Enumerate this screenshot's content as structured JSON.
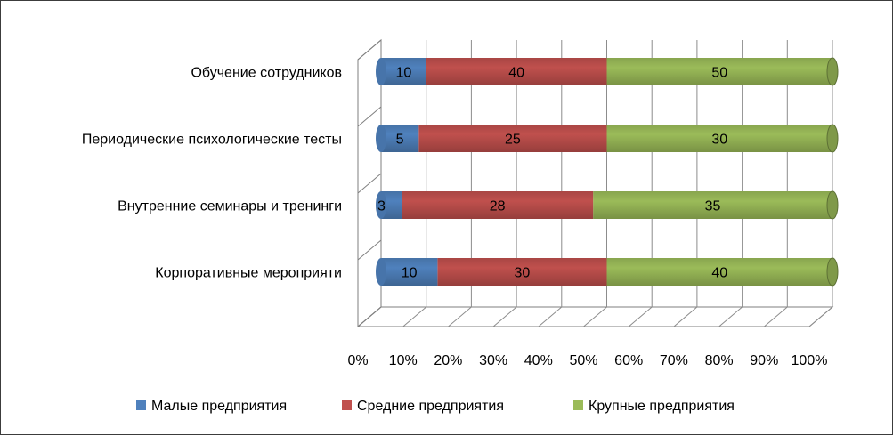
{
  "chart_data": {
    "type": "bar",
    "orientation": "horizontal",
    "stacked": "percent",
    "categories": [
      "Обучение сотрудников",
      "Периодические психологические тесты",
      "Внутренние семинары и тренинги",
      "Корпоративные мероприяти"
    ],
    "series": [
      {
        "name": "Малые предприятия",
        "color": "#4f81bd",
        "values": [
          10,
          5,
          3,
          10
        ]
      },
      {
        "name": "Средние предприятия",
        "color": "#c0504d",
        "values": [
          40,
          25,
          28,
          30
        ]
      },
      {
        "name": "Крупные предприятия",
        "color": "#9bbb59",
        "values": [
          50,
          30,
          35,
          40
        ]
      }
    ],
    "x_ticks": [
      "0%",
      "10%",
      "20%",
      "30%",
      "40%",
      "50%",
      "60%",
      "70%",
      "80%",
      "90%",
      "100%"
    ],
    "xlim": [
      0,
      100
    ],
    "grid": true,
    "legend": "bottom",
    "data_labels": true
  }
}
